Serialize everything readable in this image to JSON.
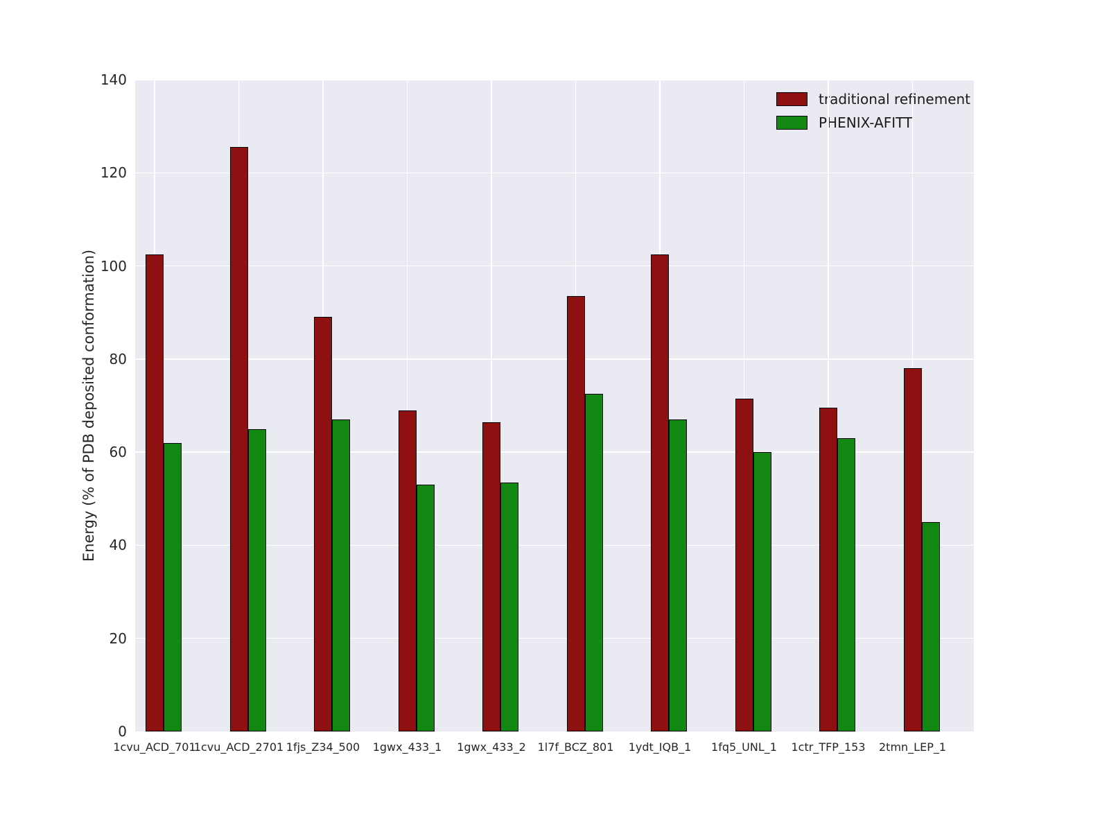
{
  "chart_data": {
    "type": "bar",
    "title": "",
    "xlabel": "",
    "ylabel": "Energy (% of PDB deposited conformation)",
    "ylim": [
      0,
      140
    ],
    "yticks": [
      0,
      20,
      40,
      60,
      80,
      100,
      120,
      140
    ],
    "grid": true,
    "legend_position": "upper right",
    "plot_background": "#eaeaf2",
    "gridline_color": "#ffffff",
    "bar_edge_color": "#000000",
    "categories": [
      "1cvu_ACD_701",
      "1cvu_ACD_2701",
      "1fjs_Z34_500",
      "1gwx_433_1",
      "1gwx_433_2",
      "1l7f_BCZ_801",
      "1ydt_IQB_1",
      "1fq5_UNL_1",
      "1ctr_TFP_153",
      "2tmn_LEP_1"
    ],
    "series": [
      {
        "name": "traditional refinement",
        "color": "#8f1010",
        "values": [
          102.5,
          125.5,
          89,
          69,
          66.5,
          93.5,
          102.5,
          71.5,
          69.5,
          78
        ]
      },
      {
        "name": "PHENIX-AFITT",
        "color": "#128712",
        "values": [
          62,
          65,
          67,
          53,
          53.5,
          72.5,
          67,
          60,
          63,
          45
        ]
      }
    ]
  }
}
